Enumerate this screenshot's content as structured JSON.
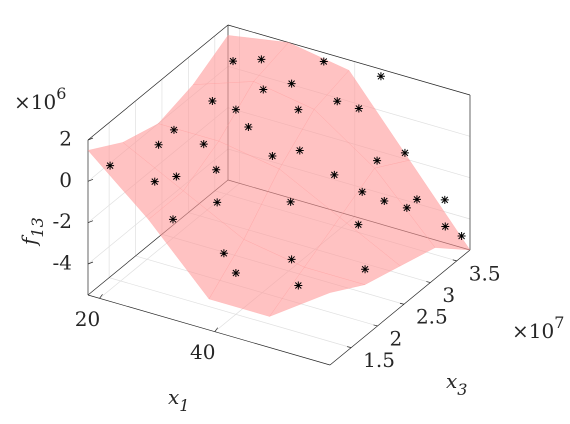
{
  "chart_data": {
    "type": "scatter3d",
    "xlabel": {
      "text": "x",
      "sub": "1"
    },
    "ylabel": {
      "text": "x",
      "sub": "3"
    },
    "zlabel": {
      "text": "f",
      "sub": "13"
    },
    "y_exponent": {
      "text": "×10",
      "sup": "7"
    },
    "z_exponent": {
      "text": "×10",
      "sup": "6"
    },
    "xlim": [
      18,
      60
    ],
    "ylim": [
      1.1,
      3.75
    ],
    "zlim": [
      -5.5,
      2
    ],
    "xticks": [
      20,
      40
    ],
    "yticks": [
      1.5,
      2,
      2.5,
      3,
      3.5
    ],
    "zticks": [
      -4,
      -2,
      0,
      2
    ],
    "grid": true,
    "surface": {
      "color": "#ff9999",
      "x": [
        18,
        28.5,
        39,
        49.5,
        60
      ],
      "y": [
        1.1,
        1.76,
        2.43,
        3.09,
        3.75
      ],
      "z": [
        [
          1.5,
          0.5,
          0,
          0.5,
          1.5
        ],
        [
          -1,
          -1,
          0,
          1.5,
          2
        ],
        [
          -4,
          -2.5,
          -0.5,
          1,
          1.5
        ],
        [
          -4,
          -3,
          -2,
          -1,
          -2
        ],
        [
          -2,
          -3,
          -3.5,
          -4,
          -5.5
        ]
      ]
    },
    "series": [
      {
        "color": "#000000",
        "x": [
          20,
          22,
          24,
          25,
          27,
          28,
          30,
          31,
          33,
          34,
          36,
          38,
          40,
          42,
          44,
          45,
          47,
          49,
          51,
          53,
          55,
          57,
          59,
          21,
          23,
          26,
          29,
          32,
          35,
          37,
          39,
          41,
          43,
          46,
          48,
          50,
          52,
          54,
          56,
          58
        ],
        "y": [
          1.3,
          2.0,
          2.8,
          1.6,
          3.4,
          2.2,
          1.4,
          3.0,
          2.5,
          1.8,
          3.6,
          2.9,
          1.5,
          3.2,
          2.1,
          3.7,
          2.6,
          1.7,
          3.5,
          2.4,
          3.1,
          3.6,
          3.7,
          2.4,
          3.3,
          1.9,
          2.7,
          2.0,
          3.1,
          1.6,
          2.3,
          2.6,
          3.5,
          1.9,
          3.3,
          2.8,
          3.0,
          3.4,
          2.2,
          3.5
        ],
        "z": [
          0.5,
          0.2,
          0.8,
          -0.5,
          1.8,
          0.3,
          -1.5,
          1.5,
          0.9,
          -1.2,
          2.0,
          1.3,
          -3.5,
          1.4,
          -1.0,
          1.8,
          -0.5,
          -3.8,
          -1.0,
          -2.0,
          -2.5,
          -3.0,
          -4.8,
          0.0,
          1.6,
          -0.8,
          1.0,
          -0.2,
          1.9,
          -3.0,
          0.4,
          0.2,
          0.5,
          -3.2,
          -1.2,
          -1.5,
          -2.2,
          -2.8,
          -3.5,
          -4.0
        ]
      }
    ]
  }
}
